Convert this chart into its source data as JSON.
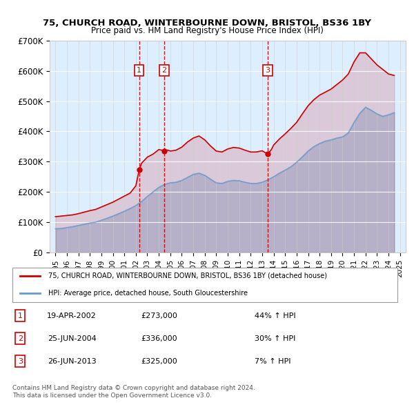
{
  "title1": "75, CHURCH ROAD, WINTERBOURNE DOWN, BRISTOL, BS36 1BY",
  "title2": "Price paid vs. HM Land Registry's House Price Index (HPI)",
  "legend_line1": "75, CHURCH ROAD, WINTERBOURNE DOWN, BRISTOL, BS36 1BY (detached house)",
  "legend_line2": "HPI: Average price, detached house, South Gloucestershire",
  "footer1": "Contains HM Land Registry data © Crown copyright and database right 2024.",
  "footer2": "This data is licensed under the Open Government Licence v3.0.",
  "red_color": "#cc0000",
  "blue_color": "#6699cc",
  "background_color": "#ddeeff",
  "sale_markers": [
    {
      "num": 1,
      "date": "19-APR-2002",
      "price": 273000,
      "pct": "44%",
      "x": 2002.29
    },
    {
      "num": 2,
      "date": "25-JUN-2004",
      "price": 336000,
      "pct": "30%",
      "x": 2004.48
    },
    {
      "num": 3,
      "date": "26-JUN-2013",
      "price": 325000,
      "pct": "7%",
      "x": 2013.48
    }
  ],
  "hpi_data": {
    "years": [
      1995,
      1995.5,
      1996,
      1996.5,
      1997,
      1997.5,
      1998,
      1998.5,
      1999,
      1999.5,
      2000,
      2000.5,
      2001,
      2001.5,
      2002,
      2002.5,
      2003,
      2003.5,
      2004,
      2004.5,
      2005,
      2005.5,
      2006,
      2006.5,
      2007,
      2007.5,
      2008,
      2008.5,
      2009,
      2009.5,
      2010,
      2010.5,
      2011,
      2011.5,
      2012,
      2012.5,
      2013,
      2013.5,
      2014,
      2014.5,
      2015,
      2015.5,
      2016,
      2016.5,
      2017,
      2017.5,
      2018,
      2018.5,
      2019,
      2019.5,
      2020,
      2020.5,
      2021,
      2021.5,
      2022,
      2022.5,
      2023,
      2023.5,
      2024,
      2024.5
    ],
    "values": [
      78000,
      79000,
      82000,
      85000,
      89000,
      93000,
      97000,
      100000,
      106000,
      113000,
      120000,
      128000,
      136000,
      145000,
      155000,
      168000,
      185000,
      200000,
      215000,
      225000,
      230000,
      232000,
      238000,
      248000,
      258000,
      262000,
      255000,
      242000,
      230000,
      228000,
      235000,
      238000,
      237000,
      232000,
      228000,
      228000,
      232000,
      240000,
      250000,
      262000,
      272000,
      283000,
      298000,
      316000,
      335000,
      350000,
      360000,
      368000,
      372000,
      378000,
      382000,
      395000,
      430000,
      460000,
      480000,
      470000,
      458000,
      450000,
      455000,
      462000
    ]
  },
  "red_data": {
    "years": [
      1995,
      1995.5,
      1996,
      1996.5,
      1997,
      1997.5,
      1998,
      1998.5,
      1999,
      1999.5,
      2000,
      2000.5,
      2001,
      2001.5,
      2002,
      2002.29,
      2002.5,
      2003,
      2003.5,
      2004,
      2004.48,
      2004.8,
      2005,
      2005.5,
      2006,
      2006.5,
      2007,
      2007.5,
      2008,
      2008.5,
      2009,
      2009.5,
      2010,
      2010.5,
      2011,
      2011.5,
      2012,
      2012.5,
      2013,
      2013.48,
      2013.8,
      2014,
      2014.5,
      2015,
      2015.5,
      2016,
      2016.5,
      2017,
      2017.5,
      2018,
      2018.5,
      2019,
      2019.5,
      2020,
      2020.5,
      2021,
      2021.5,
      2022,
      2022.5,
      2023,
      2023.5,
      2024,
      2024.5
    ],
    "values": [
      118000,
      120000,
      122000,
      124000,
      128000,
      133000,
      138000,
      142000,
      150000,
      158000,
      166000,
      176000,
      186000,
      196000,
      220000,
      273000,
      295000,
      315000,
      325000,
      340000,
      336000,
      338000,
      335000,
      338000,
      348000,
      365000,
      378000,
      385000,
      372000,
      352000,
      335000,
      332000,
      342000,
      347000,
      345000,
      338000,
      332000,
      332000,
      336000,
      325000,
      340000,
      355000,
      375000,
      392000,
      410000,
      430000,
      458000,
      485000,
      505000,
      520000,
      530000,
      540000,
      555000,
      570000,
      590000,
      630000,
      660000,
      660000,
      640000,
      620000,
      605000,
      590000,
      585000
    ]
  },
  "ylim": [
    0,
    700000
  ],
  "xlim": [
    1994.5,
    2025.5
  ],
  "yticks": [
    0,
    100000,
    200000,
    300000,
    400000,
    500000,
    600000,
    700000
  ],
  "ytick_labels": [
    "£0",
    "£100K",
    "£200K",
    "£300K",
    "£400K",
    "£500K",
    "£600K",
    "£700K"
  ],
  "xticks": [
    1995,
    1996,
    1997,
    1998,
    1999,
    2000,
    2001,
    2002,
    2003,
    2004,
    2005,
    2006,
    2007,
    2008,
    2009,
    2010,
    2011,
    2012,
    2013,
    2014,
    2015,
    2016,
    2017,
    2018,
    2019,
    2020,
    2021,
    2022,
    2023,
    2024,
    2025
  ]
}
